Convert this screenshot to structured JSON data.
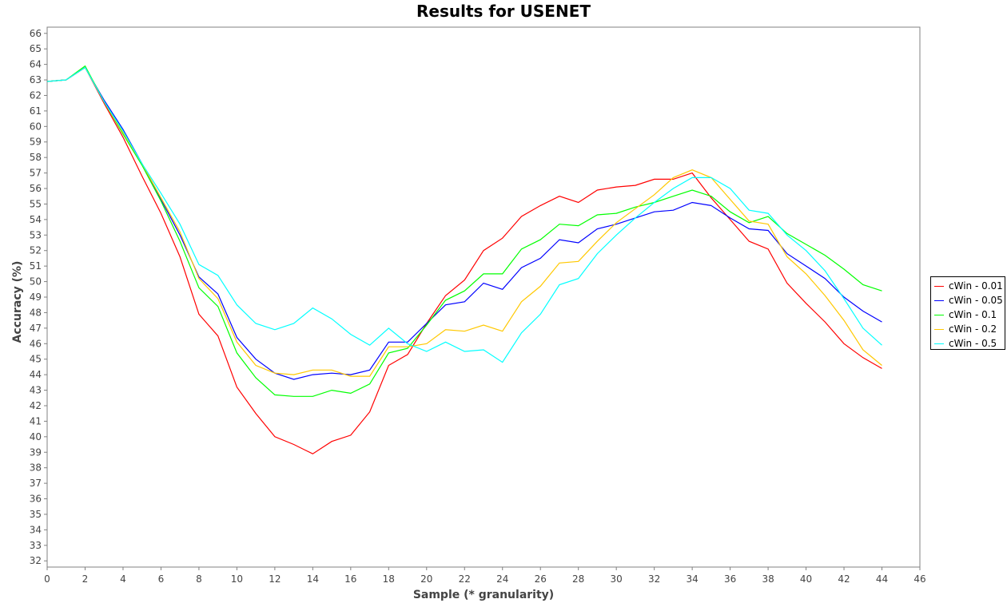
{
  "chart_data": {
    "type": "line",
    "title": "Results for USENET",
    "xlabel": "Sample (* granularity)",
    "ylabel": "Accuracy (%)",
    "xlim": [
      0,
      46
    ],
    "ylim": [
      31.6,
      66.4
    ],
    "xticks": [
      "0",
      "2",
      "4",
      "6",
      "8",
      "10",
      "12",
      "14",
      "16",
      "18",
      "20",
      "22",
      "24",
      "26",
      "28",
      "30",
      "32",
      "34",
      "36",
      "38",
      "40",
      "42",
      "44",
      "46"
    ],
    "yticks": [
      "32",
      "33",
      "34",
      "35",
      "36",
      "37",
      "38",
      "39",
      "40",
      "41",
      "42",
      "43",
      "44",
      "45",
      "46",
      "47",
      "48",
      "49",
      "50",
      "51",
      "52",
      "53",
      "54",
      "55",
      "56",
      "57",
      "58",
      "59",
      "60",
      "61",
      "62",
      "63",
      "64",
      "65",
      "66"
    ],
    "grid": false,
    "legend_position": "right",
    "x": [
      0,
      1,
      2,
      3,
      4,
      5,
      6,
      7,
      8,
      9,
      10,
      11,
      12,
      13,
      14,
      15,
      16,
      17,
      18,
      19,
      20,
      21,
      22,
      23,
      24,
      25,
      26,
      27,
      28,
      29,
      30,
      31,
      32,
      33,
      34,
      35,
      36,
      37,
      38,
      39,
      40,
      41,
      42,
      43,
      44
    ],
    "series": [
      {
        "name": "cWin - 0.01",
        "color": "#ff0000",
        "values": [
          62.9,
          63.0,
          63.8,
          61.5,
          59.3,
          56.8,
          54.4,
          51.6,
          47.9,
          46.5,
          43.2,
          41.5,
          40.0,
          39.5,
          38.9,
          39.7,
          40.1,
          41.6,
          44.6,
          45.3,
          47.3,
          49.1,
          50.1,
          52.0,
          52.8,
          54.2,
          54.9,
          55.5,
          55.1,
          55.9,
          56.1,
          56.2,
          56.6,
          56.6,
          57.0,
          55.4,
          54.0,
          52.6,
          52.1,
          49.9,
          48.6,
          47.4,
          46.0,
          45.1,
          44.4
        ]
      },
      {
        "name": "cWin - 0.05",
        "color": "#0000ff",
        "values": [
          62.9,
          63.0,
          63.8,
          61.7,
          59.8,
          57.6,
          55.3,
          53.0,
          50.3,
          49.2,
          46.4,
          45.0,
          44.1,
          43.7,
          44.0,
          44.1,
          44.0,
          44.3,
          46.1,
          46.1,
          47.3,
          48.5,
          48.7,
          49.9,
          49.5,
          50.9,
          51.5,
          52.7,
          52.5,
          53.4,
          53.7,
          54.1,
          54.5,
          54.6,
          55.1,
          54.9,
          54.1,
          53.4,
          53.3,
          51.8,
          51.0,
          50.2,
          49.0,
          48.1,
          47.4
        ]
      },
      {
        "name": "cWin - 0.1",
        "color": "#00ff00",
        "values": [
          62.9,
          63.0,
          63.9,
          61.6,
          59.5,
          57.5,
          55.2,
          52.6,
          49.6,
          48.4,
          45.4,
          43.8,
          42.7,
          42.6,
          42.6,
          43.0,
          42.8,
          43.4,
          45.4,
          45.7,
          47.2,
          48.8,
          49.4,
          50.5,
          50.5,
          52.1,
          52.7,
          53.7,
          53.6,
          54.3,
          54.4,
          54.8,
          55.1,
          55.5,
          55.9,
          55.5,
          54.5,
          53.8,
          54.2,
          53.1,
          52.4,
          51.7,
          50.8,
          49.8,
          49.4
        ]
      },
      {
        "name": "cWin - 0.2",
        "color": "#ffc800",
        "values": [
          62.9,
          63.0,
          63.8,
          61.6,
          59.6,
          57.6,
          55.4,
          53.2,
          50.2,
          48.9,
          46.1,
          44.6,
          44.1,
          44.0,
          44.3,
          44.3,
          43.9,
          43.9,
          45.8,
          45.8,
          46.0,
          46.9,
          46.8,
          47.2,
          46.8,
          48.7,
          49.7,
          51.2,
          51.3,
          52.6,
          53.8,
          54.7,
          55.6,
          56.7,
          57.2,
          56.7,
          55.3,
          53.9,
          53.7,
          51.6,
          50.5,
          49.1,
          47.5,
          45.6,
          44.6
        ]
      },
      {
        "name": "cWin - 0.5",
        "color": "#00ffff",
        "values": [
          62.9,
          63.0,
          63.8,
          61.6,
          59.7,
          57.6,
          55.7,
          53.7,
          51.1,
          50.4,
          48.5,
          47.3,
          46.9,
          47.3,
          48.3,
          47.6,
          46.6,
          45.9,
          47.0,
          46.0,
          45.5,
          46.1,
          45.5,
          45.6,
          44.8,
          46.7,
          47.9,
          49.8,
          50.2,
          51.8,
          53.0,
          54.1,
          55.1,
          56.0,
          56.7,
          56.7,
          56.0,
          54.6,
          54.4,
          53.0,
          52.0,
          50.7,
          48.9,
          47.0,
          45.9
        ]
      }
    ]
  }
}
